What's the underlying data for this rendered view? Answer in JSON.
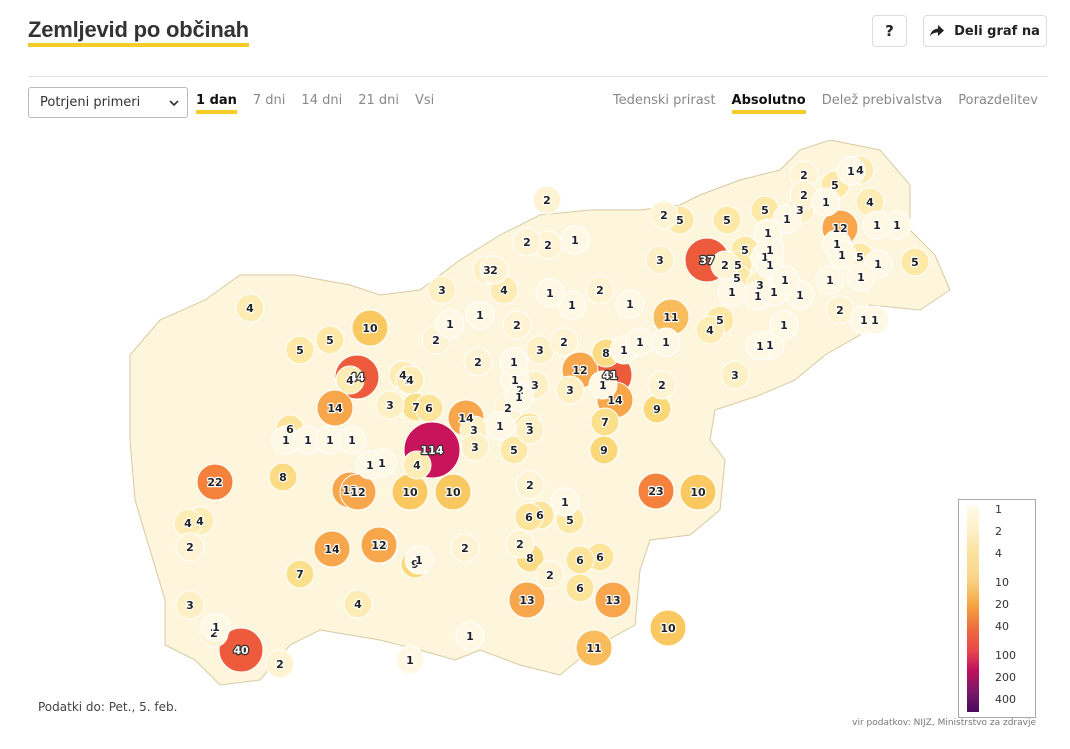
{
  "header": {
    "title": "Zemljevid po občinah",
    "help_label": "?",
    "share_label": "Deli graf na"
  },
  "controls": {
    "select": {
      "value": "Potrjeni primeri",
      "options": [
        "Potrjeni primeri"
      ]
    },
    "range_tabs": [
      {
        "label": "1 dan",
        "active": true
      },
      {
        "label": "7 dni",
        "active": false
      },
      {
        "label": "14 dni",
        "active": false
      },
      {
        "label": "21 dni",
        "active": false
      },
      {
        "label": "Vsi",
        "active": false
      }
    ],
    "metric_tabs": [
      {
        "label": "Tedenski prirast",
        "active": false
      },
      {
        "label": "Absolutno",
        "active": true
      },
      {
        "label": "Delež prebivalstva",
        "active": false
      },
      {
        "label": "Porazdelitev",
        "active": false
      }
    ]
  },
  "map": {
    "municipality_counts": [
      {
        "value": 114,
        "color": "#c8145a"
      },
      {
        "value": 44,
        "color": "#ee5a3c"
      },
      {
        "value": 41,
        "color": "#ee5a3c"
      },
      {
        "value": 40,
        "color": "#ee5a3c"
      },
      {
        "value": 37,
        "color": "#ee5a3c"
      },
      {
        "value": 23,
        "color": "#f5823c"
      },
      {
        "value": 22,
        "color": "#f5823c"
      },
      {
        "value": 14,
        "color": "#f7a64c"
      },
      {
        "value": 14,
        "color": "#f7a64c"
      },
      {
        "value": 14,
        "color": "#f7a64c"
      },
      {
        "value": 14,
        "color": "#f7a64c"
      },
      {
        "value": 13,
        "color": "#f7a64c"
      },
      {
        "value": 13,
        "color": "#f7a64c"
      },
      {
        "value": 13,
        "color": "#f7a64c"
      },
      {
        "value": 13,
        "color": "#f7a64c"
      },
      {
        "value": 12,
        "color": "#f7a64c"
      },
      {
        "value": 12,
        "color": "#f7a64c"
      },
      {
        "value": 12,
        "color": "#f7a64c"
      },
      {
        "value": 12,
        "color": "#f7a64c"
      },
      {
        "value": 11,
        "color": "#f9bc5c"
      },
      {
        "value": 11,
        "color": "#f9bc5c"
      },
      {
        "value": 10,
        "color": "#f9c860"
      },
      {
        "value": 10,
        "color": "#f9c860"
      },
      {
        "value": 10,
        "color": "#f9c860"
      },
      {
        "value": 10,
        "color": "#f9c860"
      },
      {
        "value": 10,
        "color": "#f9c860"
      },
      {
        "value": 9,
        "color": "#fad878"
      },
      {
        "value": 9,
        "color": "#fad878"
      },
      {
        "value": 9,
        "color": "#fad878"
      },
      {
        "value": 9,
        "color": "#fad878"
      },
      {
        "value": 8,
        "color": "#fbdc84"
      },
      {
        "value": 8,
        "color": "#fbdc84"
      },
      {
        "value": 8,
        "color": "#fbdc84"
      },
      {
        "value": 7,
        "color": "#fbe08c"
      },
      {
        "value": 7,
        "color": "#fbe08c"
      },
      {
        "value": 7,
        "color": "#fbe08c"
      },
      {
        "value": 7,
        "color": "#fbe08c"
      },
      {
        "value": 6,
        "color": "#fce59a"
      },
      {
        "value": 6,
        "color": "#fce59a"
      },
      {
        "value": 6,
        "color": "#fce59a"
      },
      {
        "value": 6,
        "color": "#fce59a"
      },
      {
        "value": 6,
        "color": "#fce59a"
      },
      {
        "value": 6,
        "color": "#fce59a"
      },
      {
        "value": 6,
        "color": "#fce59a"
      },
      {
        "value": 5,
        "color": "#fde8a6"
      },
      {
        "value": 5,
        "color": "#fde8a6"
      },
      {
        "value": 5,
        "color": "#fde8a6"
      },
      {
        "value": 5,
        "color": "#fde8a6"
      },
      {
        "value": 5,
        "color": "#fde8a6"
      },
      {
        "value": 5,
        "color": "#fde8a6"
      },
      {
        "value": 5,
        "color": "#fde8a6"
      },
      {
        "value": 5,
        "color": "#fde8a6"
      },
      {
        "value": 5,
        "color": "#fde8a6"
      },
      {
        "value": 5,
        "color": "#fde8a6"
      },
      {
        "value": 5,
        "color": "#fde8a6"
      },
      {
        "value": 5,
        "color": "#fde8a6"
      },
      {
        "value": 5,
        "color": "#fde8a6"
      },
      {
        "value": 5,
        "color": "#fde8a6"
      },
      {
        "value": 4,
        "color": "#fdecb4"
      },
      {
        "value": 4,
        "color": "#fdecb4"
      },
      {
        "value": 4,
        "color": "#fdecb4"
      },
      {
        "value": 4,
        "color": "#fdecb4"
      },
      {
        "value": 4,
        "color": "#fdecb4"
      },
      {
        "value": 4,
        "color": "#fdecb4"
      },
      {
        "value": 4,
        "color": "#fdecb4"
      },
      {
        "value": 4,
        "color": "#fdecb4"
      },
      {
        "value": 4,
        "color": "#fdecb4"
      },
      {
        "value": 4,
        "color": "#fdecb4"
      },
      {
        "value": 4,
        "color": "#fdecb4"
      },
      {
        "value": 4,
        "color": "#fdecb4"
      },
      {
        "value": 3,
        "color": "#fdf0c4"
      },
      {
        "value": 3,
        "color": "#fdf0c4"
      },
      {
        "value": 3,
        "color": "#fdf0c4"
      },
      {
        "value": 3,
        "color": "#fdf0c4"
      },
      {
        "value": 3,
        "color": "#fdf0c4"
      },
      {
        "value": 3,
        "color": "#fdf0c4"
      },
      {
        "value": 3,
        "color": "#fdf0c4"
      },
      {
        "value": 3,
        "color": "#fdf0c4"
      },
      {
        "value": 3,
        "color": "#fdf0c4"
      },
      {
        "value": 3,
        "color": "#fdf0c4"
      },
      {
        "value": 3,
        "color": "#fdf0c4"
      },
      {
        "value": 3,
        "color": "#fdf0c4"
      },
      {
        "value": 3,
        "color": "#fdf0c4"
      },
      {
        "value": 3,
        "color": "#fdf0c4"
      },
      {
        "value": 2,
        "color": "#fef4d4"
      },
      {
        "value": 2,
        "color": "#fef4d4"
      },
      {
        "value": 2,
        "color": "#fef4d4"
      },
      {
        "value": 2,
        "color": "#fef4d4"
      },
      {
        "value": 2,
        "color": "#fef4d4"
      },
      {
        "value": 2,
        "color": "#fef4d4"
      },
      {
        "value": 2,
        "color": "#fef4d4"
      },
      {
        "value": 2,
        "color": "#fef4d4"
      },
      {
        "value": 2,
        "color": "#fef4d4"
      },
      {
        "value": 2,
        "color": "#fef4d4"
      },
      {
        "value": 2,
        "color": "#fef4d4"
      },
      {
        "value": 2,
        "color": "#fef4d4"
      },
      {
        "value": 2,
        "color": "#fef4d4"
      },
      {
        "value": 2,
        "color": "#fef4d4"
      },
      {
        "value": 2,
        "color": "#fef4d4"
      },
      {
        "value": 2,
        "color": "#fef4d4"
      },
      {
        "value": 2,
        "color": "#fef4d4"
      },
      {
        "value": 2,
        "color": "#fef4d4"
      },
      {
        "value": 2,
        "color": "#fef4d4"
      },
      {
        "value": 2,
        "color": "#fef4d4"
      },
      {
        "value": 2,
        "color": "#fef4d4"
      },
      {
        "value": 2,
        "color": "#fef4d4"
      },
      {
        "value": 2,
        "color": "#fef4d4"
      },
      {
        "value": 2,
        "color": "#fef4d4"
      },
      {
        "value": 1,
        "color": "#fef8e4"
      },
      {
        "value": 1,
        "color": "#fef8e4"
      },
      {
        "value": 1,
        "color": "#fef8e4"
      },
      {
        "value": 1,
        "color": "#fef8e4"
      },
      {
        "value": 1,
        "color": "#fef8e4"
      },
      {
        "value": 1,
        "color": "#fef8e4"
      },
      {
        "value": 1,
        "color": "#fef8e4"
      },
      {
        "value": 1,
        "color": "#fef8e4"
      },
      {
        "value": 1,
        "color": "#fef8e4"
      },
      {
        "value": 1,
        "color": "#fef8e4"
      },
      {
        "value": 1,
        "color": "#fef8e4"
      },
      {
        "value": 1,
        "color": "#fef8e4"
      },
      {
        "value": 1,
        "color": "#fef8e4"
      },
      {
        "value": 1,
        "color": "#fef8e4"
      },
      {
        "value": 1,
        "color": "#fef8e4"
      },
      {
        "value": 1,
        "color": "#fef8e4"
      },
      {
        "value": 1,
        "color": "#fef8e4"
      },
      {
        "value": 1,
        "color": "#fef8e4"
      },
      {
        "value": 1,
        "color": "#fef8e4"
      },
      {
        "value": 1,
        "color": "#fef8e4"
      },
      {
        "value": 1,
        "color": "#fef8e4"
      },
      {
        "value": 1,
        "color": "#fef8e4"
      },
      {
        "value": 1,
        "color": "#fef8e4"
      },
      {
        "value": 1,
        "color": "#fef8e4"
      },
      {
        "value": 1,
        "color": "#fef8e4"
      },
      {
        "value": 1,
        "color": "#fef8e4"
      },
      {
        "value": 1,
        "color": "#fef8e4"
      },
      {
        "value": 1,
        "color": "#fef8e4"
      },
      {
        "value": 1,
        "color": "#fef8e4"
      },
      {
        "value": 1,
        "color": "#fef8e4"
      },
      {
        "value": 1,
        "color": "#fef8e4"
      },
      {
        "value": 1,
        "color": "#fef8e4"
      },
      {
        "value": 1,
        "color": "#fef8e4"
      },
      {
        "value": 1,
        "color": "#fef8e4"
      },
      {
        "value": 1,
        "color": "#fef8e4"
      },
      {
        "value": 1,
        "color": "#fef8e4"
      },
      {
        "value": 1,
        "color": "#fef8e4"
      },
      {
        "value": 1,
        "color": "#fef8e4"
      },
      {
        "value": 1,
        "color": "#fef8e4"
      },
      {
        "value": 1,
        "color": "#fef8e4"
      },
      {
        "value": 1,
        "color": "#fef8e4"
      },
      {
        "value": 1,
        "color": "#fef8e4"
      },
      {
        "value": 1,
        "color": "#fef8e4"
      },
      {
        "value": 1,
        "color": "#fef8e4"
      },
      {
        "value": 1,
        "color": "#fef8e4"
      },
      {
        "value": 1,
        "color": "#fef8e4"
      },
      {
        "value": 1,
        "color": "#fef8e4"
      },
      {
        "value": 1,
        "color": "#fef8e4"
      },
      {
        "value": 1,
        "color": "#fef8e4"
      }
    ]
  },
  "legend": {
    "ticks": [
      "1",
      "2",
      "4",
      "10",
      "20",
      "40",
      "100",
      "200",
      "400"
    ]
  },
  "footer": {
    "data_date": "Podatki do: Pet., 5. feb.",
    "source": "vir podatkov: NIJZ, Ministrstvo za zdravje"
  },
  "colors": {
    "accent": "#f4cd28",
    "max": "#c8145a",
    "high": "#ee5a3c",
    "mid": "#f7a64c",
    "low": "#fef8e4"
  }
}
